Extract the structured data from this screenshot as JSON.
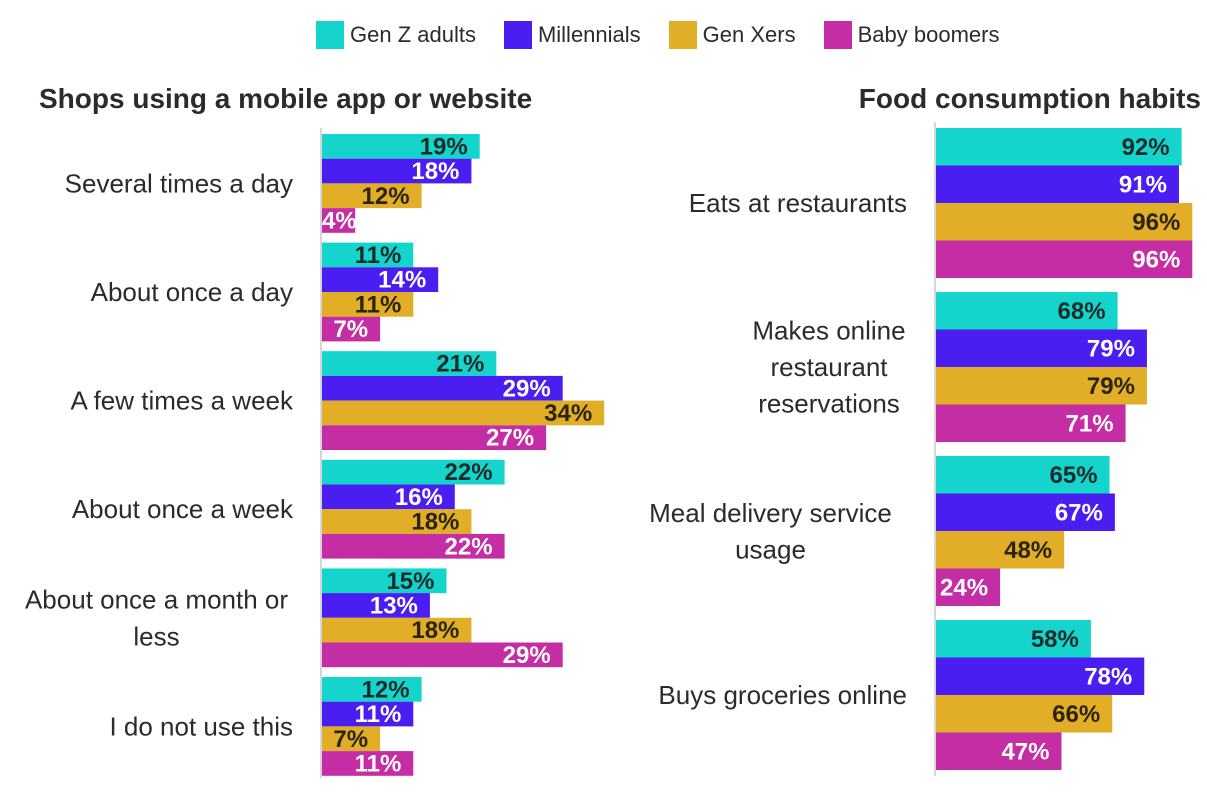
{
  "legend": [
    {
      "name": "Gen Z adults",
      "color": "#14d4cc"
    },
    {
      "name": "Millennials",
      "color": "#4a1ef0"
    },
    {
      "name": "Gen Xers",
      "color": "#e2ad27"
    },
    {
      "name": "Baby boomers",
      "color": "#c42da4"
    }
  ],
  "chart_data": [
    {
      "type": "bar",
      "orientation": "horizontal",
      "title": "Shops using a mobile app or website",
      "categories": [
        "Several times a day",
        "About once a day",
        "A few times a week",
        "About once a week",
        "About once a month or less",
        "I do not use this"
      ],
      "series": [
        {
          "name": "Gen Z adults",
          "values": [
            19,
            11,
            21,
            22,
            15,
            12
          ]
        },
        {
          "name": "Millennials",
          "values": [
            18,
            14,
            29,
            16,
            13,
            11
          ]
        },
        {
          "name": "Gen Xers",
          "values": [
            12,
            11,
            34,
            18,
            18,
            7
          ]
        },
        {
          "name": "Baby boomers",
          "values": [
            4,
            7,
            27,
            22,
            29,
            11
          ]
        }
      ],
      "value_suffix": "%"
    },
    {
      "type": "bar",
      "orientation": "horizontal",
      "title": "Food consumption habits",
      "categories": [
        "Eats at restaurants",
        "Makes online restaurant reservations",
        "Meal delivery service usage",
        "Buys groceries online"
      ],
      "series": [
        {
          "name": "Gen Z adults",
          "values": [
            92,
            68,
            65,
            58
          ]
        },
        {
          "name": "Millennials",
          "values": [
            91,
            79,
            67,
            78
          ]
        },
        {
          "name": "Gen Xers",
          "values": [
            96,
            79,
            48,
            66
          ]
        },
        {
          "name": "Baby boomers",
          "values": [
            96,
            71,
            24,
            47
          ]
        }
      ],
      "value_suffix": "%"
    }
  ]
}
